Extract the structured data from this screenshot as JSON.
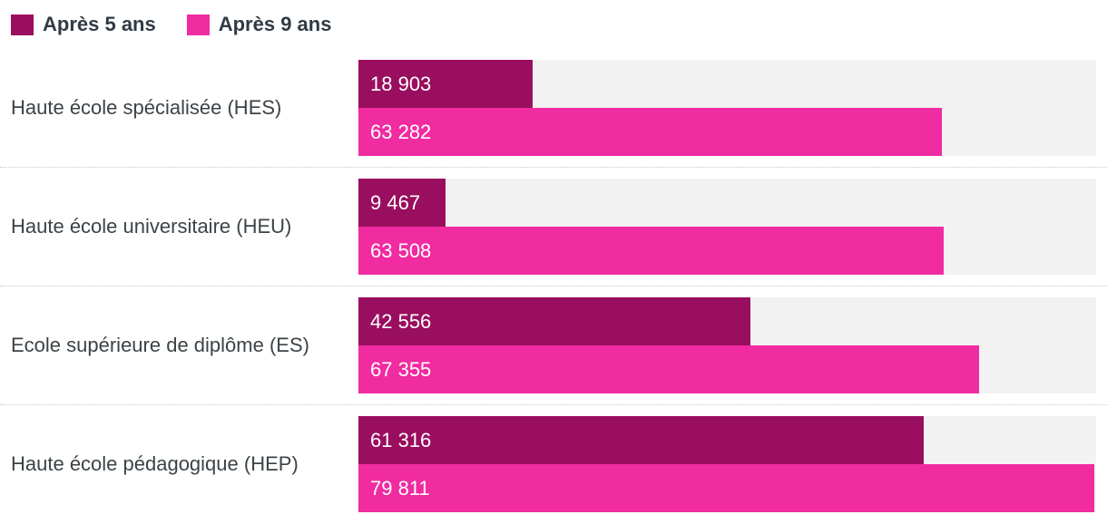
{
  "legend_note": "",
  "colors": {
    "track": "#f2f2f2",
    "separator": "#c9c9c9",
    "category_text": "#3c4347",
    "legend_text": "#2f3a44",
    "value_text": "#ffffff"
  },
  "chart_data": {
    "type": "bar",
    "orientation": "horizontal",
    "title": "",
    "xlabel": "",
    "ylabel": "",
    "xlim": [
      0,
      80000
    ],
    "grid": false,
    "legend_position": "top-left",
    "track_color": "#f2f2f2",
    "categories": [
      "Haute école spécialisée (HES)",
      "Haute école universitaire (HEU)",
      "Ecole supérieure de diplôme (ES)",
      "Haute école pédagogique (HEP)"
    ],
    "series": [
      {
        "name": "Après 5 ans",
        "color": "#9a0e5f",
        "values": [
          18903,
          9467,
          42556,
          61316
        ],
        "labels": [
          "18 903",
          "9 467",
          "42 556",
          "61 316"
        ]
      },
      {
        "name": "Après 9 ans",
        "color": "#f12ba0",
        "values": [
          63282,
          63508,
          67355,
          79811
        ],
        "labels": [
          "63 282",
          "63 508",
          "67 355",
          "79 811"
        ]
      }
    ]
  }
}
